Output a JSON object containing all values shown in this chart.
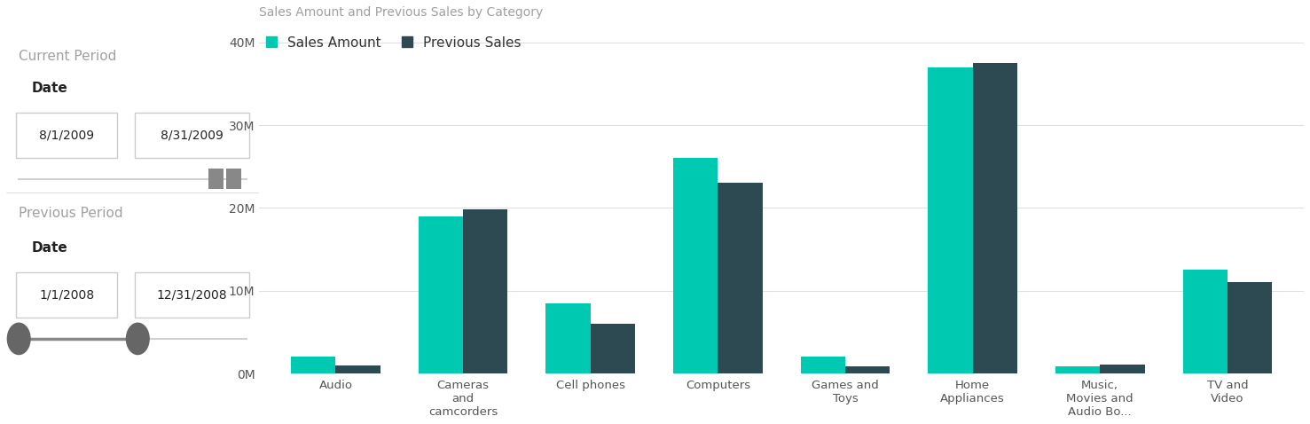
{
  "title": "Sales Amount and Previous Sales by Category",
  "categories": [
    "Audio",
    "Cameras\nand\ncamcorders",
    "Cell phones",
    "Computers",
    "Games and\nToys",
    "Home\nAppliances",
    "Music,\nMovies and\nAudio Bo...",
    "TV and\nVideo"
  ],
  "sales_amount": [
    2000000,
    19000000,
    8500000,
    26000000,
    2000000,
    37000000,
    900000,
    12500000
  ],
  "previous_sales": [
    1000000,
    19800000,
    6000000,
    23000000,
    900000,
    37500000,
    1100000,
    11000000
  ],
  "color_sales": "#00c9b1",
  "color_previous": "#2d4a52",
  "legend_labels": [
    "Sales Amount",
    "Previous Sales"
  ],
  "yticks": [
    0,
    10000000,
    20000000,
    30000000,
    40000000
  ],
  "ytick_labels": [
    "0M",
    "10M",
    "20M",
    "30M",
    "40M"
  ],
  "ylim": [
    0,
    42000000
  ],
  "background_color": "#ffffff",
  "title_color": "#a0a0a0",
  "title_fontsize": 10,
  "axis_label_color": "#555555",
  "tick_label_color": "#555555",
  "grid_color": "#e0e0e0",
  "current_period_label": "Current Period",
  "current_date_label": "Date",
  "current_date_start": "8/1/2009",
  "current_date_end": "8/31/2009",
  "previous_period_label": "Previous Period",
  "previous_date_label": "Date",
  "previous_date_start": "1/1/2008",
  "previous_date_end": "12/31/2008"
}
